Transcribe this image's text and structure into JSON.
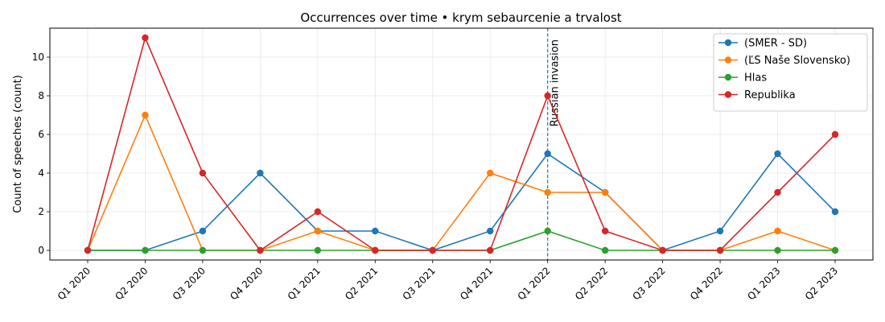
{
  "chart_data": {
    "type": "line",
    "title": "Occurrences over time • krym sebaurcenie a trvalost",
    "xlabel": "",
    "ylabel": "Count of speeches (count)",
    "categories": [
      "Q1 2020",
      "Q2 2020",
      "Q3 2020",
      "Q4 2020",
      "Q1 2021",
      "Q2 2021",
      "Q3 2021",
      "Q4 2021",
      "Q1 2022",
      "Q2 2022",
      "Q3 2022",
      "Q4 2022",
      "Q1 2023",
      "Q2 2023"
    ],
    "ylim": [
      -0.5,
      11.5
    ],
    "yticks": [
      0,
      2,
      4,
      6,
      8,
      10
    ],
    "grid": true,
    "legend_position": "top-right",
    "series": [
      {
        "name": "(SMER - SD)",
        "color": "#1f77b4",
        "values": [
          0,
          0,
          1,
          4,
          1,
          1,
          0,
          1,
          5,
          3,
          0,
          1,
          5,
          2
        ]
      },
      {
        "name": "(ĽS Naše Slovensko)",
        "color": "#ff7f0e",
        "values": [
          0,
          7,
          0,
          0,
          1,
          0,
          0,
          4,
          3,
          3,
          0,
          0,
          1,
          0
        ]
      },
      {
        "name": "Hlas",
        "color": "#2ca02c",
        "values": [
          0,
          0,
          0,
          0,
          0,
          0,
          0,
          0,
          1,
          0,
          0,
          0,
          0,
          0
        ]
      },
      {
        "name": "Republika",
        "color": "#d62728",
        "values": [
          0,
          11,
          4,
          0,
          2,
          0,
          0,
          0,
          8,
          1,
          0,
          0,
          3,
          6
        ]
      }
    ],
    "annotations": [
      {
        "category": "Q1 2022",
        "text": "Russian invasion",
        "color": "#1f77b4",
        "style": "dashed"
      }
    ]
  }
}
